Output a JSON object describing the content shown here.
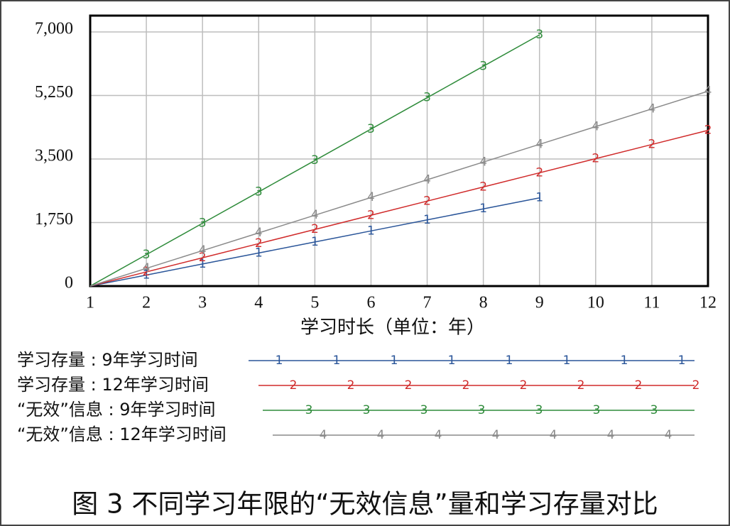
{
  "chart_data": {
    "type": "line",
    "x_label": "学习时长（单位：年）",
    "caption": "图 3 不同学习年限的“无效信息”量和学习存量对比",
    "x": [
      1,
      2,
      3,
      4,
      5,
      6,
      7,
      8,
      9,
      10,
      11,
      12
    ],
    "xlim": [
      1,
      12
    ],
    "xticks": [
      1,
      2,
      3,
      4,
      5,
      6,
      7,
      8,
      9,
      10,
      11,
      12
    ],
    "ylim": [
      0,
      7450
    ],
    "yticks": [
      0,
      {
        "value": 1750,
        "label": "1,750"
      },
      {
        "value": 3500,
        "label": "3,500"
      },
      {
        "value": 5250,
        "label": "5,250"
      },
      {
        "value": 7000,
        "label": "7,000"
      }
    ],
    "grid": true,
    "series": [
      {
        "name": "学习存量 : 9年学习时间",
        "marker": "1",
        "color": "#2a5599",
        "values": [
          0,
          304,
          608,
          911,
          1215,
          1519,
          1823,
          2127,
          2430,
          null,
          null,
          null
        ]
      },
      {
        "name": "学习存量 : 12年学习时间",
        "marker": "2",
        "color": "#d02a2a",
        "values": [
          0,
          390,
          780,
          1170,
          1560,
          1950,
          2340,
          2730,
          3120,
          3510,
          3900,
          4290
        ]
      },
      {
        "name": "“无效”信息 : 9年学习时间",
        "marker": "3",
        "color": "#2e8b3a",
        "values": [
          0,
          865,
          1730,
          2595,
          3460,
          4325,
          5190,
          6055,
          6920,
          null,
          null,
          null
        ]
      },
      {
        "name": "“无效”信息 : 12年学习时间",
        "marker": "4",
        "color": "#8a8a8a",
        "values": [
          0,
          488,
          976,
          1464,
          1952,
          2440,
          2928,
          3416,
          3904,
          4392,
          4880,
          5368
        ]
      }
    ]
  }
}
